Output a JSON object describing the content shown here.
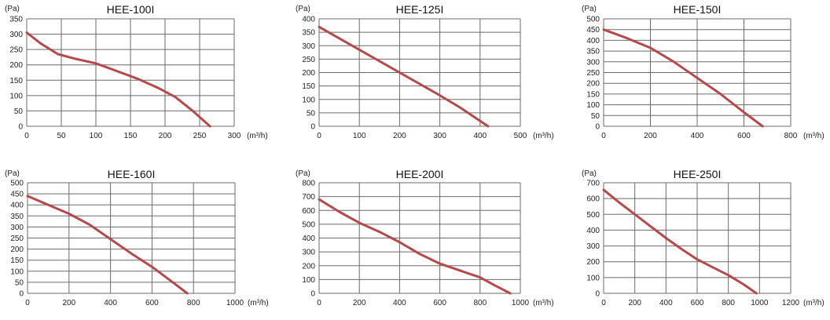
{
  "style": {
    "line_color": "#b64a4a",
    "grid_color": "#6b6b6b",
    "text_color": "#222222"
  },
  "chart_data": [
    {
      "type": "line",
      "title": "HEE-100I",
      "ylabel": "(Pa)",
      "xlabel": "(m³/h)",
      "xlim": [
        0,
        300
      ],
      "ylim": [
        0,
        350
      ],
      "x_ticks": [
        0,
        50,
        100,
        150,
        200,
        250,
        300
      ],
      "y_ticks": [
        0,
        50,
        100,
        150,
        200,
        250,
        300,
        350
      ],
      "grid": true,
      "series": [
        {
          "x": [
            0,
            20,
            45,
            70,
            100,
            130,
            160,
            190,
            215,
            240,
            265
          ],
          "y": [
            305,
            270,
            235,
            220,
            205,
            180,
            155,
            125,
            95,
            50,
            0
          ]
        }
      ]
    },
    {
      "type": "line",
      "title": "HEE-125I",
      "ylabel": "(Pa)",
      "xlabel": "(m³/h)",
      "xlim": [
        0,
        500
      ],
      "ylim": [
        0,
        400
      ],
      "x_ticks": [
        0,
        100,
        200,
        300,
        400,
        500
      ],
      "y_ticks": [
        0,
        50,
        100,
        150,
        200,
        250,
        300,
        350,
        400
      ],
      "grid": true,
      "series": [
        {
          "x": [
            0,
            100,
            200,
            300,
            350,
            420
          ],
          "y": [
            370,
            285,
            200,
            115,
            70,
            0
          ]
        }
      ]
    },
    {
      "type": "line",
      "title": "HEE-150I",
      "ylabel": "(Pa)",
      "xlabel": "(m³/h)",
      "xlim": [
        0,
        800
      ],
      "ylim": [
        0,
        500
      ],
      "x_ticks": [
        0,
        200,
        400,
        600,
        800
      ],
      "y_ticks": [
        0,
        50,
        100,
        150,
        200,
        250,
        300,
        350,
        400,
        450,
        500
      ],
      "grid": true,
      "series": [
        {
          "x": [
            0,
            100,
            200,
            300,
            400,
            500,
            600,
            680
          ],
          "y": [
            450,
            410,
            365,
            300,
            225,
            150,
            65,
            0
          ]
        }
      ]
    },
    {
      "type": "line",
      "title": "HEE-160I",
      "ylabel": "(Pa)",
      "xlabel": "(m³/h)",
      "xlim": [
        0,
        1000
      ],
      "ylim": [
        0,
        500
      ],
      "x_ticks": [
        0,
        200,
        400,
        600,
        800,
        1000
      ],
      "y_ticks": [
        0,
        50,
        100,
        150,
        200,
        250,
        300,
        350,
        400,
        450,
        500
      ],
      "grid": true,
      "series": [
        {
          "x": [
            0,
            100,
            200,
            300,
            400,
            500,
            600,
            700,
            770
          ],
          "y": [
            440,
            400,
            360,
            310,
            245,
            180,
            120,
            50,
            0
          ]
        }
      ]
    },
    {
      "type": "line",
      "title": "HEE-200I",
      "ylabel": "(Pa)",
      "xlabel": "(m³/h)",
      "xlim": [
        0,
        1000
      ],
      "ylim": [
        0,
        800
      ],
      "x_ticks": [
        0,
        200,
        400,
        600,
        800,
        1000
      ],
      "y_ticks": [
        0,
        100,
        200,
        300,
        400,
        500,
        600,
        700,
        800
      ],
      "grid": true,
      "series": [
        {
          "x": [
            0,
            100,
            200,
            300,
            400,
            500,
            600,
            700,
            800,
            870,
            950
          ],
          "y": [
            680,
            590,
            510,
            445,
            370,
            285,
            215,
            165,
            115,
            60,
            0
          ]
        }
      ]
    },
    {
      "type": "line",
      "title": "HEE-250I",
      "ylabel": "(Pa)",
      "xlabel": "(m³/h)",
      "xlim": [
        0,
        1200
      ],
      "ylim": [
        0,
        700
      ],
      "x_ticks": [
        0,
        200,
        400,
        600,
        800,
        1000,
        1200
      ],
      "y_ticks": [
        0,
        100,
        200,
        300,
        400,
        500,
        600,
        700
      ],
      "grid": true,
      "series": [
        {
          "x": [
            0,
            100,
            200,
            300,
            400,
            500,
            600,
            700,
            800,
            900,
            980
          ],
          "y": [
            655,
            575,
            500,
            425,
            350,
            280,
            215,
            165,
            115,
            55,
            0
          ]
        }
      ]
    }
  ]
}
